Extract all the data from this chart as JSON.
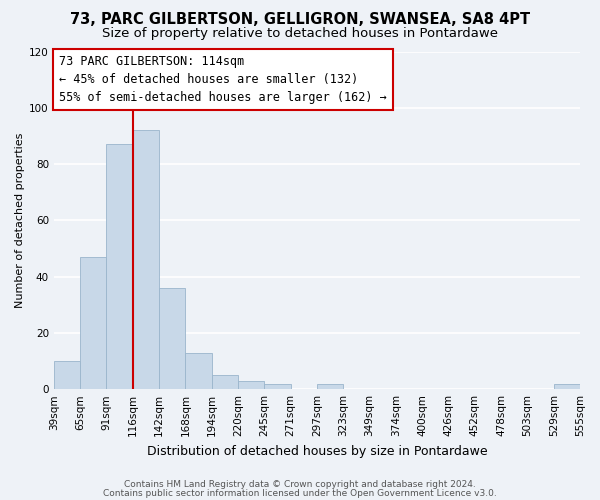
{
  "title": "73, PARC GILBERTSON, GELLIGRON, SWANSEA, SA8 4PT",
  "subtitle": "Size of property relative to detached houses in Pontardawe",
  "xlabel": "Distribution of detached houses by size in Pontardawe",
  "ylabel": "Number of detached properties",
  "bar_values": [
    10,
    47,
    87,
    92,
    36,
    13,
    5,
    3,
    2,
    0,
    2,
    0,
    0,
    0,
    0,
    0,
    0,
    0,
    0,
    2
  ],
  "bar_labels": [
    "39sqm",
    "65sqm",
    "91sqm",
    "116sqm",
    "142sqm",
    "168sqm",
    "194sqm",
    "220sqm",
    "245sqm",
    "271sqm",
    "297sqm",
    "323sqm",
    "349sqm",
    "374sqm",
    "400sqm",
    "426sqm",
    "452sqm",
    "478sqm",
    "503sqm",
    "529sqm",
    "555sqm"
  ],
  "bar_color": "#c8d8e8",
  "bar_edge_color": "#9ab5cc",
  "vline_color": "#cc0000",
  "ylim": [
    0,
    120
  ],
  "yticks": [
    0,
    20,
    40,
    60,
    80,
    100,
    120
  ],
  "annotation_line1": "73 PARC GILBERTSON: 114sqm",
  "annotation_line2": "← 45% of detached houses are smaller (132)",
  "annotation_line3": "55% of semi-detached houses are larger (162) →",
  "annotation_box_facecolor": "#ffffff",
  "annotation_box_edgecolor": "#cc0000",
  "footer1": "Contains HM Land Registry data © Crown copyright and database right 2024.",
  "footer2": "Contains public sector information licensed under the Open Government Licence v3.0.",
  "background_color": "#eef2f7",
  "grid_color": "#ffffff",
  "title_fontsize": 10.5,
  "subtitle_fontsize": 9.5,
  "ylabel_fontsize": 8,
  "xlabel_fontsize": 9,
  "tick_fontsize": 7.5,
  "annotation_fontsize": 8.5,
  "footer_fontsize": 6.5
}
